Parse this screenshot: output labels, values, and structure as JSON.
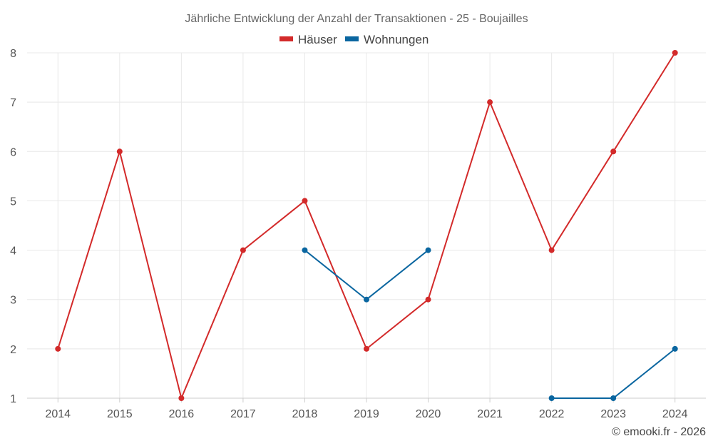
{
  "chart_data": {
    "type": "line",
    "title": "Jährliche Entwicklung der Anzahl der Transaktionen - 25 - Boujailles",
    "categories": [
      "2014",
      "2015",
      "2016",
      "2017",
      "2018",
      "2019",
      "2020",
      "2021",
      "2022",
      "2023",
      "2024"
    ],
    "series": [
      {
        "name": "Häuser",
        "color": "#d32a2a",
        "values": [
          2,
          6,
          1,
          4,
          5,
          2,
          3,
          7,
          4,
          6,
          8
        ]
      },
      {
        "name": "Wohnungen",
        "color": "#0a66a0",
        "values": [
          null,
          null,
          null,
          null,
          4,
          3,
          4,
          null,
          1,
          1,
          2
        ]
      }
    ],
    "ylim": [
      1,
      8
    ],
    "yticks": [
      1,
      2,
      3,
      4,
      5,
      6,
      7,
      8
    ],
    "xlabel": "",
    "ylabel": "",
    "grid": true,
    "legend_position": "top-center"
  },
  "credit": "© emooki.fr - 2026"
}
